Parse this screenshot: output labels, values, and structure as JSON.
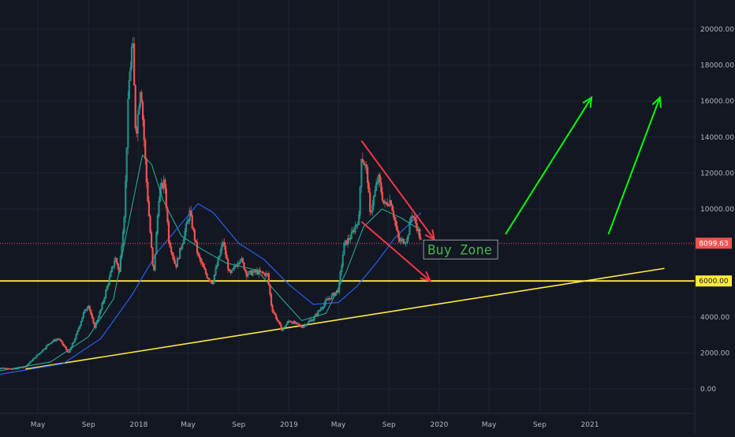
{
  "chart_data": {
    "type": "candlestick",
    "instrument_note": "",
    "x_axis": {
      "ticks": [
        "May",
        "Sep",
        "2018",
        "May",
        "Sep",
        "2019",
        "May",
        "Sep",
        "2020",
        "May",
        "Sep",
        "2021"
      ],
      "tick_dates": [
        "2017-05-01",
        "2017-09-01",
        "2018-01-01",
        "2018-05-01",
        "2018-09-01",
        "2019-01-01",
        "2019-05-01",
        "2019-09-01",
        "2020-01-01",
        "2020-05-01",
        "2020-09-01",
        "2021-01-01"
      ],
      "range": [
        "2017-01-01",
        "2021-07-01"
      ]
    },
    "y_axis": {
      "ticks": [
        "0.00",
        "2000.00",
        "4000.00",
        "6000.00",
        "8000.00",
        "10000.00",
        "12000.00",
        "14000.00",
        "16000.00",
        "18000.00",
        "20000.00"
      ],
      "range": [
        -1000,
        21500
      ],
      "position": "right"
    },
    "grid": true,
    "series": [
      {
        "kind": "price",
        "points": [
          [
            "2017-01-01",
            1000
          ],
          [
            "2017-02-01",
            1150
          ],
          [
            "2017-03-01",
            1100
          ],
          [
            "2017-04-01",
            1250
          ],
          [
            "2017-05-01",
            1900
          ],
          [
            "2017-06-01",
            2600
          ],
          [
            "2017-06-20",
            2800
          ],
          [
            "2017-07-15",
            2000
          ],
          [
            "2017-08-01",
            2900
          ],
          [
            "2017-08-20",
            4200
          ],
          [
            "2017-09-01",
            4700
          ],
          [
            "2017-09-15",
            3400
          ],
          [
            "2017-10-01",
            4400
          ],
          [
            "2017-10-20",
            6000
          ],
          [
            "2017-11-05",
            7300
          ],
          [
            "2017-11-15",
            6500
          ],
          [
            "2017-11-28",
            10000
          ],
          [
            "2017-12-07",
            16500
          ],
          [
            "2017-12-17",
            19500
          ],
          [
            "2017-12-25",
            14000
          ],
          [
            "2018-01-06",
            17000
          ],
          [
            "2018-01-20",
            11500
          ],
          [
            "2018-02-06",
            6200
          ],
          [
            "2018-02-20",
            11000
          ],
          [
            "2018-03-05",
            11500
          ],
          [
            "2018-03-15",
            8300
          ],
          [
            "2018-04-01",
            6800
          ],
          [
            "2018-04-15",
            8000
          ],
          [
            "2018-05-05",
            9800
          ],
          [
            "2018-05-25",
            7400
          ],
          [
            "2018-06-15",
            6300
          ],
          [
            "2018-06-29",
            5900
          ],
          [
            "2018-07-25",
            8200
          ],
          [
            "2018-08-10",
            6300
          ],
          [
            "2018-09-05",
            7300
          ],
          [
            "2018-09-20",
            6400
          ],
          [
            "2018-10-15",
            6500
          ],
          [
            "2018-11-10",
            6350
          ],
          [
            "2018-11-20",
            4500
          ],
          [
            "2018-12-15",
            3250
          ],
          [
            "2019-01-01",
            3800
          ],
          [
            "2019-02-01",
            3450
          ],
          [
            "2019-03-01",
            3900
          ],
          [
            "2019-04-02",
            4900
          ],
          [
            "2019-05-01",
            5500
          ],
          [
            "2019-05-15",
            8000
          ],
          [
            "2019-06-01",
            8500
          ],
          [
            "2019-06-20",
            9500
          ],
          [
            "2019-06-26",
            13000
          ],
          [
            "2019-07-10",
            12000
          ],
          [
            "2019-07-17",
            9700
          ],
          [
            "2019-08-06",
            11800
          ],
          [
            "2019-08-20",
            10200
          ],
          [
            "2019-09-05",
            10500
          ],
          [
            "2019-09-25",
            8200
          ],
          [
            "2019-10-15",
            8300
          ],
          [
            "2019-10-26",
            9800
          ],
          [
            "2019-11-05",
            9200
          ],
          [
            "2019-11-12",
            8700
          ],
          [
            "2019-11-18",
            8099
          ]
        ]
      },
      {
        "kind": "moving-average-teal",
        "color": "#26a69a",
        "points": [
          [
            "2017-01-01",
            900
          ],
          [
            "2017-06-01",
            1500
          ],
          [
            "2017-09-01",
            2900
          ],
          [
            "2017-11-01",
            5000
          ],
          [
            "2017-12-01",
            8500
          ],
          [
            "2018-01-10",
            13000
          ],
          [
            "2018-02-01",
            12500
          ],
          [
            "2018-03-01",
            10500
          ],
          [
            "2018-04-15",
            8500
          ],
          [
            "2018-06-01",
            7800
          ],
          [
            "2018-08-01",
            7000
          ],
          [
            "2018-10-15",
            6600
          ],
          [
            "2018-12-15",
            5000
          ],
          [
            "2019-02-01",
            3800
          ],
          [
            "2019-04-01",
            4200
          ],
          [
            "2019-05-20",
            6500
          ],
          [
            "2019-07-01",
            9000
          ],
          [
            "2019-08-15",
            10000
          ],
          [
            "2019-10-01",
            9500
          ],
          [
            "2019-11-18",
            8800
          ]
        ]
      },
      {
        "kind": "moving-average-blue",
        "color": "#2962ff",
        "points": [
          [
            "2017-01-01",
            700
          ],
          [
            "2017-07-01",
            1400
          ],
          [
            "2017-10-01",
            2800
          ],
          [
            "2017-12-15",
            5200
          ],
          [
            "2018-02-15",
            7600
          ],
          [
            "2018-04-15",
            9200
          ],
          [
            "2018-05-25",
            10300
          ],
          [
            "2018-07-01",
            9800
          ],
          [
            "2018-09-01",
            8100
          ],
          [
            "2018-11-01",
            7200
          ],
          [
            "2019-01-01",
            5800
          ],
          [
            "2019-03-01",
            4700
          ],
          [
            "2019-05-01",
            4800
          ],
          [
            "2019-06-15",
            5700
          ],
          [
            "2019-08-01",
            7000
          ],
          [
            "2019-09-15",
            8400
          ],
          [
            "2019-11-18",
            9800
          ]
        ]
      }
    ],
    "horizontal_lines": [
      {
        "name": "",
        "value": 6000,
        "label": "6000.00",
        "color": "#ffeb3b"
      },
      {
        "name": "",
        "value": 8099.63,
        "label": "8099.63",
        "color": "#ef5350",
        "style": "dotted"
      }
    ],
    "trendline": {
      "from": [
        "2017-04-01",
        1100
      ],
      "to": [
        "2021-07-01",
        6700
      ],
      "color": "#ffeb3b"
    },
    "drawings": {
      "red_arrows": [
        {
          "from": [
            "2019-06-26",
            13800
          ],
          "to": [
            "2019-12-20",
            8300
          ]
        },
        {
          "from": [
            "2019-06-26",
            9300
          ],
          "to": [
            "2019-12-10",
            6000
          ]
        }
      ],
      "green_arrows": [
        {
          "from": [
            "2020-06-10",
            8600
          ],
          "to": [
            "2021-01-05",
            16200
          ]
        },
        {
          "from": [
            "2021-02-15",
            8600
          ],
          "to": [
            "2021-06-20",
            16200
          ]
        }
      ],
      "color_red": "#f23645",
      "color_green": "#00ff00"
    },
    "annotations": [
      {
        "text": "Buy Zone",
        "date": "2019-11-24",
        "value": 7750,
        "color": "#4caf50"
      }
    ]
  }
}
